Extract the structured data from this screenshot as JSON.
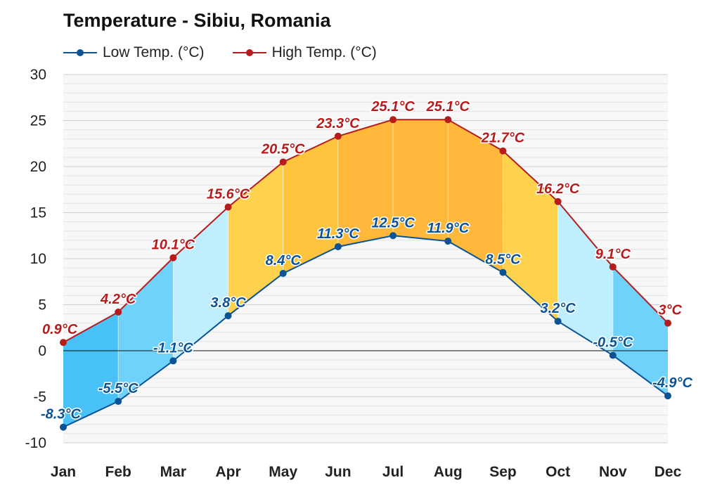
{
  "chart_data": {
    "type": "line",
    "title": "Temperature - Sibiu, Romania",
    "categories": [
      "Jan",
      "Feb",
      "Mar",
      "Apr",
      "May",
      "Jun",
      "Jul",
      "Aug",
      "Sep",
      "Oct",
      "Nov",
      "Dec"
    ],
    "series": [
      {
        "name": "Low Temp. (°C)",
        "values": [
          -8.3,
          -5.5,
          -1.1,
          3.8,
          8.4,
          11.3,
          12.5,
          11.9,
          8.5,
          3.2,
          -0.5,
          -4.9
        ],
        "labels": [
          "-8.3°C",
          "-5.5°C",
          "-1.1°C",
          "3.8°C",
          "8.4°C",
          "11.3°C",
          "12.5°C",
          "11.9°C",
          "8.5°C",
          "3.2°C",
          "-0.5°C",
          "-4.9°C"
        ],
        "color": "#0b5394"
      },
      {
        "name": "High Temp. (°C)",
        "values": [
          0.9,
          4.2,
          10.1,
          15.6,
          20.5,
          23.3,
          25.1,
          25.1,
          21.7,
          16.2,
          9.1,
          3
        ],
        "labels": [
          "0.9°C",
          "4.2°C",
          "10.1°C",
          "15.6°C",
          "20.5°C",
          "23.3°C",
          "25.1°C",
          "25.1°C",
          "21.7°C",
          "16.2°C",
          "9.1°C",
          "3°C"
        ],
        "color": "#b71c1c"
      }
    ],
    "band_colors": [
      "#48c1f7",
      "#6fd2fa",
      "#bfeefd",
      "#ffd24d",
      "#ffc43d",
      "#ffb83a",
      "#ffb83a",
      "#ffb83a",
      "#ffd24d",
      "#bfeefd",
      "#6fd2fa",
      "#48c1f7"
    ],
    "ylim": [
      -10,
      30
    ],
    "yticks": [
      "30",
      "25",
      "20",
      "15",
      "10",
      "5",
      "0",
      "-5",
      "-10"
    ],
    "ytick_values": [
      30,
      25,
      20,
      15,
      10,
      5,
      0,
      -5,
      -10
    ],
    "grid": true,
    "legend_position": "top-left"
  }
}
